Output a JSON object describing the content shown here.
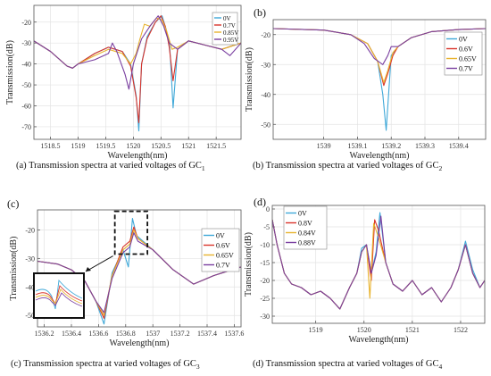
{
  "captions": [
    {
      "main": "(a) Transmission spectra at varied voltages of GC",
      "sub": "1"
    },
    {
      "main": "(b) Transmission spectra at varied voltages of GC",
      "sub": "2"
    },
    {
      "main": "(c) Transmission spectra at varied voltages of GC",
      "sub": "3"
    },
    {
      "main": "(d) Transmission spectra at varied voltages of GC",
      "sub": "4"
    }
  ],
  "chart_data": [
    {
      "type": "line",
      "panel_label": "",
      "xlabel": "Wavelength(nm)",
      "ylabel": "Transmission(dB)",
      "xlim": [
        1518.2,
        1521.95
      ],
      "ylim": [
        -76,
        -12
      ],
      "xticks": [
        1518.5,
        1519,
        1519.5,
        1520,
        1520.5,
        1521,
        1521.5
      ],
      "xtick_labels": [
        "1518.5",
        "1519",
        "1519.5",
        "1520",
        "1520.5",
        "1521",
        "1521.5"
      ],
      "yticks": [
        -70,
        -60,
        -50,
        -40,
        -30,
        -20
      ],
      "ytick_labels": [
        "-70",
        "-60",
        "-50",
        "-40",
        "-30",
        "-20"
      ],
      "legend": "top-right",
      "series": [
        {
          "name": "0V",
          "color": "#3fa8d8",
          "x": [
            1518.2,
            1518.5,
            1518.8,
            1518.9,
            1519.0,
            1519.3,
            1519.55,
            1519.8,
            1519.95,
            1520.05,
            1520.1,
            1520.15,
            1520.25,
            1520.4,
            1520.52,
            1520.6,
            1520.66,
            1520.72,
            1520.8,
            1521.0,
            1521.3,
            1521.6,
            1521.95
          ],
          "y": [
            -29,
            -34,
            -41,
            -42,
            -40,
            -35,
            -32,
            -34,
            -40,
            -55,
            -72,
            -40,
            -27,
            -20,
            -17,
            -24,
            -32,
            -61,
            -33,
            -29,
            -31,
            -33,
            -30
          ]
        },
        {
          "name": "0.7V",
          "color": "#d9342b",
          "x": [
            1518.2,
            1518.5,
            1518.8,
            1518.9,
            1519.0,
            1519.3,
            1519.55,
            1519.8,
            1519.95,
            1520.05,
            1520.1,
            1520.15,
            1520.25,
            1520.4,
            1520.5,
            1520.58,
            1520.65,
            1520.72,
            1520.8,
            1521.0,
            1521.3,
            1521.6,
            1521.95
          ],
          "y": [
            -29,
            -34,
            -41,
            -42,
            -40,
            -35,
            -32,
            -34,
            -41,
            -56,
            -68,
            -40,
            -28,
            -20,
            -17,
            -22,
            -32,
            -48,
            -33,
            -29,
            -31,
            -33,
            -30
          ]
        },
        {
          "name": "0.85V",
          "color": "#e8b32f",
          "x": [
            1518.2,
            1518.5,
            1518.8,
            1518.9,
            1519.0,
            1519.3,
            1519.55,
            1519.8,
            1519.95,
            1520.05,
            1520.12,
            1520.2,
            1520.3,
            1520.42,
            1520.52,
            1520.6,
            1520.7,
            1520.8,
            1521.0,
            1521.3,
            1521.6,
            1521.95
          ],
          "y": [
            -29,
            -34,
            -41,
            -42,
            -40,
            -36,
            -33,
            -35,
            -40,
            -35,
            -28,
            -21,
            -22,
            -18,
            -19,
            -24,
            -33,
            -32,
            -29,
            -31,
            -33,
            -30
          ]
        },
        {
          "name": "0.95V",
          "color": "#7a3fa0",
          "x": [
            1518.2,
            1518.5,
            1518.8,
            1518.9,
            1519.0,
            1519.3,
            1519.55,
            1519.62,
            1519.7,
            1519.85,
            1519.92,
            1520.0,
            1520.15,
            1520.3,
            1520.45,
            1520.55,
            1520.65,
            1520.8,
            1521.0,
            1521.3,
            1521.6,
            1521.75,
            1521.95
          ],
          "y": [
            -29,
            -34,
            -41,
            -42,
            -40,
            -38,
            -35,
            -30,
            -34,
            -45,
            -52,
            -40,
            -28,
            -22,
            -17,
            -22,
            -30,
            -33,
            -29,
            -31,
            -33,
            -36,
            -30
          ]
        }
      ]
    },
    {
      "type": "line",
      "panel_label": "(b)",
      "xlabel": "Wavelength(nm)",
      "ylabel": "Transmission(dB)",
      "xlim": [
        1538.85,
        1539.48
      ],
      "ylim": [
        -55,
        -15
      ],
      "xticks": [
        1539,
        1539.1,
        1539.2,
        1539.3,
        1539.4
      ],
      "xtick_labels": [
        "1539",
        "1539.1",
        "1539.2",
        "1539.3",
        "1539.4"
      ],
      "yticks": [
        -50,
        -40,
        -30,
        -20
      ],
      "ytick_labels": [
        "-50",
        "-40",
        "-30",
        "-20"
      ],
      "legend": "right",
      "series": [
        {
          "name": "0V",
          "color": "#3fa8d8",
          "x": [
            1538.85,
            1539.0,
            1539.08,
            1539.13,
            1539.16,
            1539.175,
            1539.185,
            1539.2,
            1539.22,
            1539.26,
            1539.32,
            1539.4,
            1539.48
          ],
          "y": [
            -18,
            -18.5,
            -20,
            -23,
            -29,
            -40,
            -52,
            -27,
            -24,
            -21,
            -19,
            -18.3,
            -18
          ]
        },
        {
          "name": "0.6V",
          "color": "#d9342b",
          "x": [
            1538.85,
            1539.0,
            1539.08,
            1539.13,
            1539.16,
            1539.178,
            1539.19,
            1539.205,
            1539.22,
            1539.26,
            1539.32,
            1539.4,
            1539.48
          ],
          "y": [
            -18,
            -18.5,
            -20,
            -23,
            -29,
            -37,
            -33,
            -27,
            -24,
            -21,
            -19,
            -18.3,
            -18
          ]
        },
        {
          "name": "0.65V",
          "color": "#e8b32f",
          "x": [
            1538.85,
            1539.0,
            1539.08,
            1539.13,
            1539.16,
            1539.178,
            1539.19,
            1539.205,
            1539.22,
            1539.26,
            1539.32,
            1539.4,
            1539.48
          ],
          "y": [
            -18,
            -18.5,
            -20,
            -23,
            -29,
            -36,
            -32,
            -26,
            -24,
            -21,
            -19,
            -18.3,
            -18
          ]
        },
        {
          "name": "0.7V",
          "color": "#7a3fa0",
          "x": [
            1538.85,
            1539.0,
            1539.08,
            1539.12,
            1539.15,
            1539.175,
            1539.19,
            1539.2,
            1539.22,
            1539.26,
            1539.32,
            1539.4,
            1539.48
          ],
          "y": [
            -18,
            -18.5,
            -20,
            -23,
            -28,
            -30,
            -27,
            -24,
            -24,
            -21,
            -19,
            -18.3,
            -18
          ]
        }
      ]
    },
    {
      "type": "line",
      "panel_label": "(c)",
      "xlabel": "Wavelength(nm)",
      "ylabel": "Transmission(dB)",
      "xlim": [
        1536.15,
        1537.65
      ],
      "ylim": [
        -54,
        -13
      ],
      "xticks": [
        1536.2,
        1536.4,
        1536.6,
        1536.8,
        1537,
        1537.2,
        1537.4,
        1537.6
      ],
      "xtick_labels": [
        "1536.2",
        "1536.4",
        "1536.6",
        "1536.8",
        "1537",
        "1537.2",
        "1537.4",
        "1537.6"
      ],
      "yticks": [
        -50,
        -40,
        -30,
        -20
      ],
      "ytick_labels": [
        "-50",
        "-40",
        "-30",
        "-20"
      ],
      "legend": "right",
      "series": [
        {
          "name": "0V",
          "color": "#3fa8d8",
          "x": [
            1536.15,
            1536.3,
            1536.4,
            1536.5,
            1536.58,
            1536.64,
            1536.7,
            1536.78,
            1536.82,
            1536.85,
            1536.88,
            1537.0,
            1537.15,
            1537.3,
            1537.45,
            1537.65
          ],
          "y": [
            -31,
            -32,
            -34,
            -38,
            -45,
            -53,
            -35,
            -27,
            -33,
            -16,
            -22,
            -27,
            -34,
            -39,
            -36,
            -33
          ]
        },
        {
          "name": "0.6V",
          "color": "#d9342b",
          "x": [
            1536.15,
            1536.3,
            1536.4,
            1536.5,
            1536.58,
            1536.64,
            1536.7,
            1536.78,
            1536.83,
            1536.86,
            1536.89,
            1537.0,
            1537.15,
            1537.3,
            1537.45,
            1537.65
          ],
          "y": [
            -31,
            -32,
            -34,
            -38,
            -45,
            -51,
            -36,
            -26,
            -24,
            -19,
            -23,
            -27,
            -34,
            -39,
            -36,
            -33
          ]
        },
        {
          "name": "0.65V",
          "color": "#e8b32f",
          "x": [
            1536.15,
            1536.3,
            1536.4,
            1536.5,
            1536.58,
            1536.64,
            1536.7,
            1536.78,
            1536.83,
            1536.86,
            1536.89,
            1537.0,
            1537.15,
            1537.3,
            1537.45,
            1537.65
          ],
          "y": [
            -31,
            -32,
            -34,
            -38,
            -45,
            -50,
            -36,
            -27,
            -25,
            -20,
            -23,
            -27,
            -34,
            -39,
            -36,
            -33
          ]
        },
        {
          "name": "0.7V",
          "color": "#7a3fa0",
          "x": [
            1536.15,
            1536.3,
            1536.4,
            1536.5,
            1536.58,
            1536.64,
            1536.7,
            1536.78,
            1536.83,
            1536.86,
            1536.89,
            1537.0,
            1537.15,
            1537.3,
            1537.45,
            1537.65
          ],
          "y": [
            -31,
            -32,
            -34,
            -38,
            -45,
            -49,
            -37,
            -28,
            -26,
            -21,
            -24,
            -27,
            -34,
            -39,
            -36,
            -33
          ]
        }
      ]
    },
    {
      "type": "line",
      "panel_label": "(d)",
      "xlabel": "Wavelength(nm)",
      "ylabel": "Transmission(dB)",
      "xlim": [
        1518.1,
        1522.5
      ],
      "ylim": [
        -32,
        1
      ],
      "xticks": [
        1519,
        1520,
        1521,
        1522
      ],
      "xtick_labels": [
        "1519",
        "1520",
        "1521",
        "1522"
      ],
      "yticks": [
        -30,
        -25,
        -20,
        -15,
        -10,
        -5,
        0
      ],
      "ytick_labels": [
        "-30",
        "-25",
        "-20",
        "-15",
        "-10",
        "-5",
        "0"
      ],
      "legend": "top-left",
      "series": [
        {
          "name": "0V",
          "color": "#3fa8d8",
          "x": [
            1518.1,
            1518.2,
            1518.35,
            1518.5,
            1518.7,
            1518.9,
            1519.1,
            1519.3,
            1519.5,
            1519.7,
            1519.85,
            1519.95,
            1520.05,
            1520.15,
            1520.25,
            1520.33,
            1520.45,
            1520.6,
            1520.8,
            1521.0,
            1521.2,
            1521.4,
            1521.6,
            1521.8,
            1521.95,
            1522.1,
            1522.25,
            1522.4,
            1522.5
          ],
          "y": [
            -3,
            -10,
            -18,
            -21,
            -22,
            -24,
            -23,
            -25,
            -28,
            -22,
            -18,
            -11,
            -10,
            -18,
            -12,
            -1,
            -15,
            -21,
            -23,
            -20,
            -24,
            -22,
            -26,
            -22,
            -17,
            -9,
            -17,
            -22,
            -20
          ]
        },
        {
          "name": "0.8V",
          "color": "#d9342b",
          "x": [
            1518.1,
            1518.2,
            1518.35,
            1518.5,
            1518.7,
            1518.9,
            1519.1,
            1519.3,
            1519.5,
            1519.7,
            1519.85,
            1519.95,
            1520.05,
            1520.15,
            1520.22,
            1520.3,
            1520.45,
            1520.6,
            1520.8,
            1521.0,
            1521.2,
            1521.4,
            1521.6,
            1521.8,
            1521.95,
            1522.1,
            1522.25,
            1522.4,
            1522.5
          ],
          "y": [
            -3,
            -10,
            -18,
            -21,
            -22,
            -24,
            -23,
            -25,
            -28,
            -22,
            -18,
            -12,
            -10,
            -20,
            -3,
            -6,
            -15,
            -21,
            -23,
            -20,
            -24,
            -22,
            -26,
            -22,
            -17,
            -10,
            -18,
            -22,
            -20
          ]
        },
        {
          "name": "0.84V",
          "color": "#e8b32f",
          "x": [
            1518.1,
            1518.2,
            1518.35,
            1518.5,
            1518.7,
            1518.9,
            1519.1,
            1519.3,
            1519.5,
            1519.7,
            1519.85,
            1519.95,
            1520.05,
            1520.12,
            1520.2,
            1520.3,
            1520.45,
            1520.6,
            1520.8,
            1521.0,
            1521.2,
            1521.4,
            1521.6,
            1521.8,
            1521.95,
            1522.1,
            1522.25,
            1522.4,
            1522.5
          ],
          "y": [
            -3,
            -10,
            -18,
            -21,
            -22,
            -24,
            -23,
            -25,
            -28,
            -22,
            -18,
            -12,
            -10,
            -25,
            -4,
            -8,
            -15,
            -21,
            -23,
            -20,
            -24,
            -22,
            -26,
            -22,
            -17,
            -10,
            -18,
            -22,
            -20
          ]
        },
        {
          "name": "0.88V",
          "color": "#7a3fa0",
          "x": [
            1518.1,
            1518.2,
            1518.35,
            1518.5,
            1518.7,
            1518.9,
            1519.1,
            1519.3,
            1519.5,
            1519.7,
            1519.85,
            1519.95,
            1520.05,
            1520.15,
            1520.25,
            1520.35,
            1520.45,
            1520.6,
            1520.8,
            1521.0,
            1521.2,
            1521.4,
            1521.6,
            1521.8,
            1521.95,
            1522.1,
            1522.25,
            1522.4,
            1522.5
          ],
          "y": [
            -3,
            -10,
            -18,
            -21,
            -22,
            -24,
            -23,
            -25,
            -28,
            -22,
            -18,
            -12,
            -10,
            -18,
            -13,
            -2,
            -15,
            -21,
            -23,
            -20,
            -24,
            -22,
            -26,
            -22,
            -17,
            -10,
            -18,
            -22,
            -20
          ]
        }
      ]
    }
  ]
}
